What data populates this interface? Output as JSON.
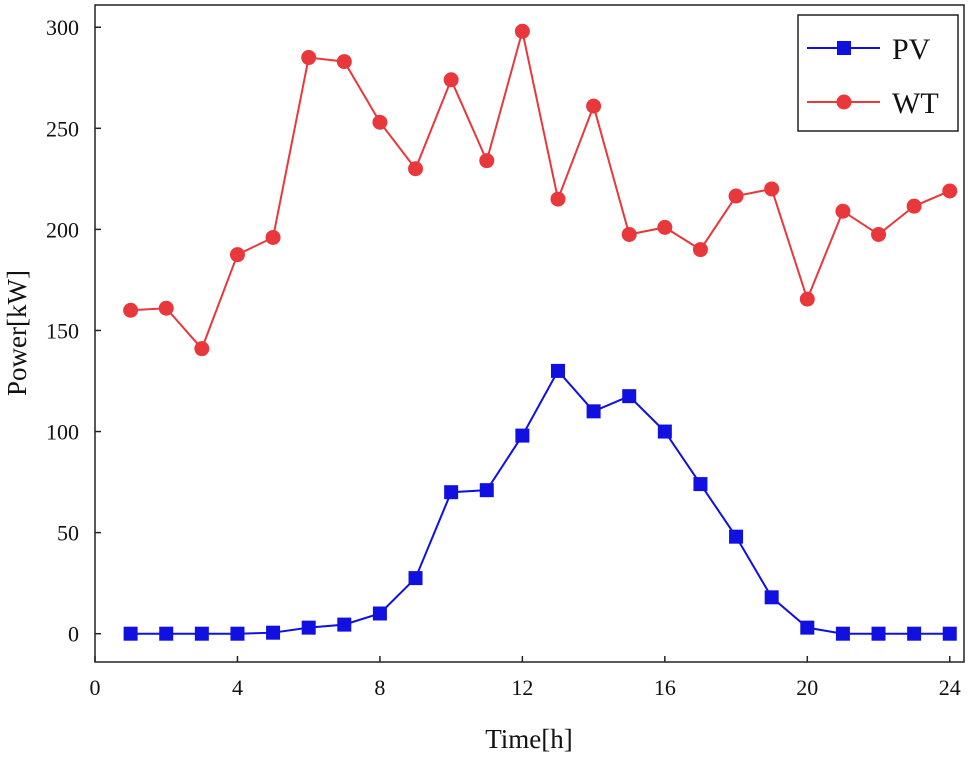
{
  "chart_data": {
    "type": "line",
    "title": "",
    "xlabel": "Time[h]",
    "ylabel": "Power[kW]",
    "xlim": [
      0,
      24.4
    ],
    "ylim": [
      -14,
      311
    ],
    "xticks": [
      0,
      4,
      8,
      12,
      16,
      20,
      24
    ],
    "yticks": [
      0,
      50,
      100,
      150,
      200,
      250,
      300
    ],
    "grid": false,
    "legend_position": "top-right",
    "x": [
      1,
      2,
      3,
      4,
      5,
      6,
      7,
      8,
      9,
      10,
      11,
      12,
      13,
      14,
      15,
      16,
      17,
      18,
      19,
      20,
      21,
      22,
      23,
      24
    ],
    "series": [
      {
        "name": "PV",
        "color": "#1010e0",
        "marker": "square",
        "values": [
          0,
          0,
          0,
          0,
          0.5,
          3,
          4.5,
          10,
          27.5,
          70,
          71,
          98,
          130,
          110,
          117.5,
          100,
          74,
          48,
          18,
          3,
          0,
          0,
          0,
          0
        ]
      },
      {
        "name": "WT",
        "color": "#e8383c",
        "marker": "circle",
        "values": [
          160,
          161,
          141,
          187.5,
          196,
          285,
          283,
          253,
          230,
          274,
          234,
          298,
          215,
          261,
          197.5,
          201,
          190,
          216.5,
          220,
          165.5,
          209,
          197.5,
          211.5,
          219
        ]
      }
    ]
  }
}
